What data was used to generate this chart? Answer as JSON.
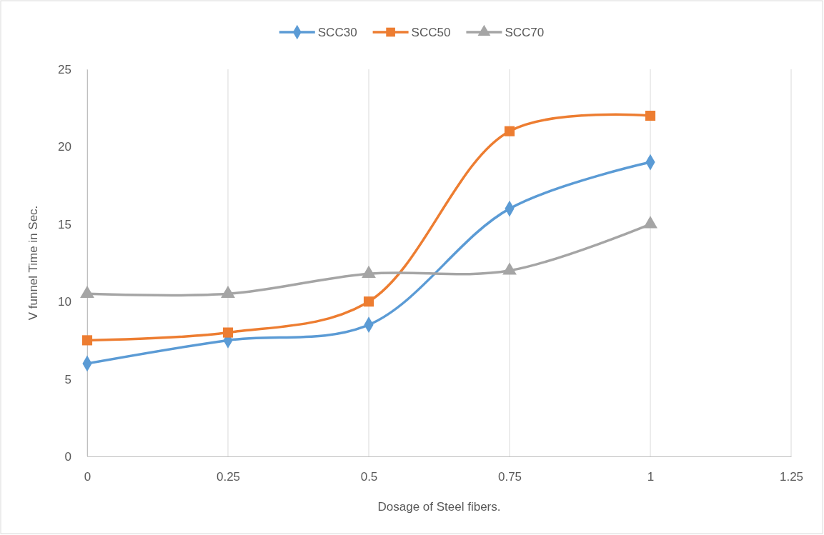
{
  "chart_data": {
    "type": "line",
    "xlabel": "Dosage of Steel fibers.",
    "ylabel": "V funnel Time in Sec.",
    "x": [
      0,
      0.25,
      0.5,
      0.75,
      1
    ],
    "series": [
      {
        "name": "SCC30",
        "color": "#5b9bd5",
        "marker": "diamond",
        "values": [
          6,
          7.5,
          8.5,
          16,
          19
        ]
      },
      {
        "name": "SCC50",
        "color": "#ed7d31",
        "marker": "square",
        "values": [
          7.5,
          8,
          10,
          21,
          22
        ]
      },
      {
        "name": "SCC70",
        "color": "#a5a5a5",
        "marker": "triangle",
        "values": [
          10.5,
          10.5,
          11.8,
          12,
          15
        ]
      }
    ],
    "xlim": [
      0,
      1.25
    ],
    "xticks": [
      0,
      0.25,
      0.5,
      0.75,
      1,
      1.25
    ],
    "ylim": [
      0,
      25
    ],
    "yticks": [
      0,
      5,
      10,
      15,
      20,
      25
    ],
    "grid": "x",
    "legend": "top",
    "line_style": "solid"
  }
}
